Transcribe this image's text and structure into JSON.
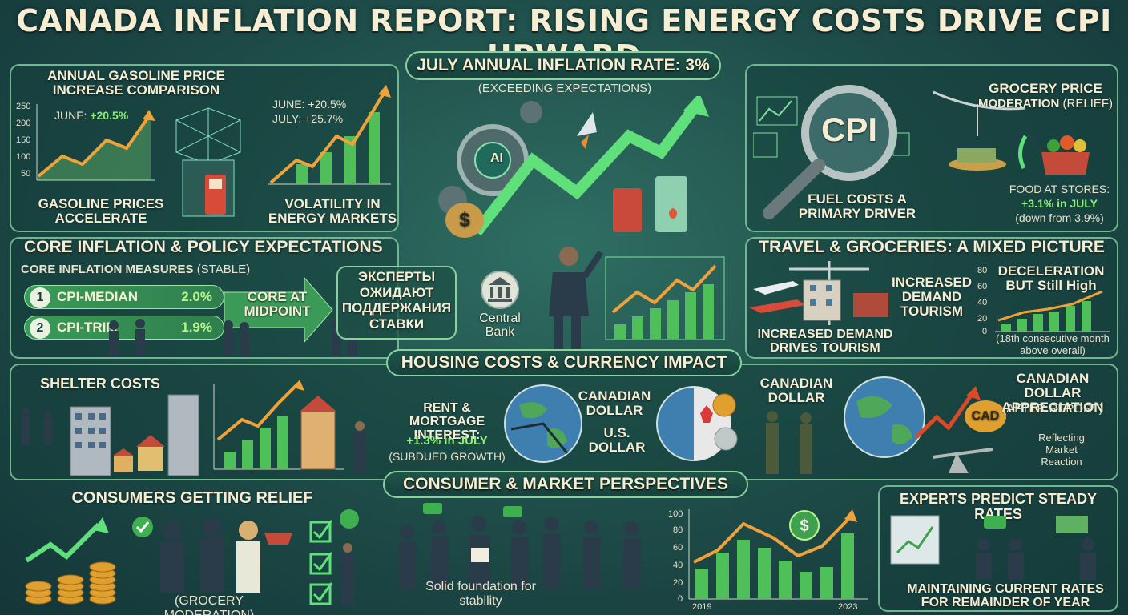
{
  "title": "CANADA INFLATION REPORT: RISING ENERGY COSTS DRIVE CPI UPWARD",
  "gasoline": {
    "heading": "ANNUAL GASOLINE PRICE INCREASE COMPARISON",
    "ticks": [
      "250",
      "200",
      "150",
      "100",
      "50"
    ],
    "june_label": "JUNE:",
    "june_value": "+20.5%",
    "caption": "GASOLINE PRICES ACCELERATE",
    "volatility_june": "JUNE: +20.5%",
    "volatility_july": "JULY: +25.7%",
    "volatility_caption": "VOLATILITY IN ENERGY MARKETS"
  },
  "july": {
    "banner": "JULY ANNUAL INFLATION RATE: 3%",
    "sub": "(EXCEEDING EXPECTATIONS)",
    "ai_label": "AI"
  },
  "cpi": {
    "badge": "CPI",
    "caption": "FUEL COSTS A PRIMARY DRIVER"
  },
  "grocery": {
    "heading": "GROCERY PRICE",
    "heading2": "MODERATION",
    "relief": "(RELIEF)",
    "food_line": "FOOD AT STORES:",
    "food_value": "+3.1% in JULY",
    "food_note": "(down from 3.9%)"
  },
  "core": {
    "banner": "CORE INFLATION & POLICY EXPECTATIONS",
    "measures_label": "CORE INFLATION MEASURES",
    "measures_note": "(STABLE)",
    "items": [
      {
        "num": "1",
        "name": "CPI-MEDIAN",
        "value": "2.0%"
      },
      {
        "num": "2",
        "name": "CPI-TRIM",
        "value": "1.9%"
      }
    ],
    "midpoint": "CORE AT MIDPOINT",
    "experts_ru": "ЭКСПЕРТЫ ОЖИДАЮТ ПОДДЕРЖАНИЯ СТАВКИ",
    "central_bank": "Central Bank"
  },
  "travel": {
    "banner": "TRAVEL & GROCERIES: A MIXED PICTURE",
    "increased_demand": "INCREASED DEMAND TOURISM",
    "caption": "INCREASED DEMAND DRIVES TOURISM",
    "decel": "DECELERATION BUT Still High",
    "ticks": [
      "80",
      "60",
      "40",
      "20",
      "0"
    ],
    "note": "(18th consecutive month above overall)"
  },
  "housing": {
    "banner": "HOUSING COSTS & CURRENCY IMPACT",
    "shelter": "SHELTER COSTS",
    "rent_label": "RENT & MORTGAGE INTEREST:",
    "rent_value": "+1.3% in JULY",
    "rent_note": "(SUBDUED GROWTH)",
    "cad_label": "CANADIAN DOLLAR",
    "usd_label": "U.S. DOLLAR"
  },
  "currency": {
    "canadian_dollar": "CANADIAN DOLLAR",
    "appreciation": "CANADIAN DOLLAR APPRECIATION",
    "after_report": "(AFTER REPORT)",
    "cad_coin": "CAD",
    "reflecting": "Reflecting Market Reaction"
  },
  "consumer": {
    "banner": "CONSUMER & MARKET PERSPECTIVES",
    "relief": "CONSUMERS GETTING RELIEF",
    "grocery_mod": "(GROCERY MODERATION)",
    "foundation": "Solid foundation for stability",
    "chart_ticks": [
      "100",
      "80",
      "60",
      "40",
      "20",
      "0"
    ],
    "x_start": "2019",
    "x_end": "2023"
  },
  "experts": {
    "heading": "EXPERTS PREDICT STEADY RATES",
    "maintaining": "MAINTAINING CURRENT RATES FOR REMAINDER OF YEAR"
  },
  "colors": {
    "accent_green": "#8ff07a",
    "arrow_orange": "#f0a23a",
    "panel_border": "#6fb78f"
  }
}
